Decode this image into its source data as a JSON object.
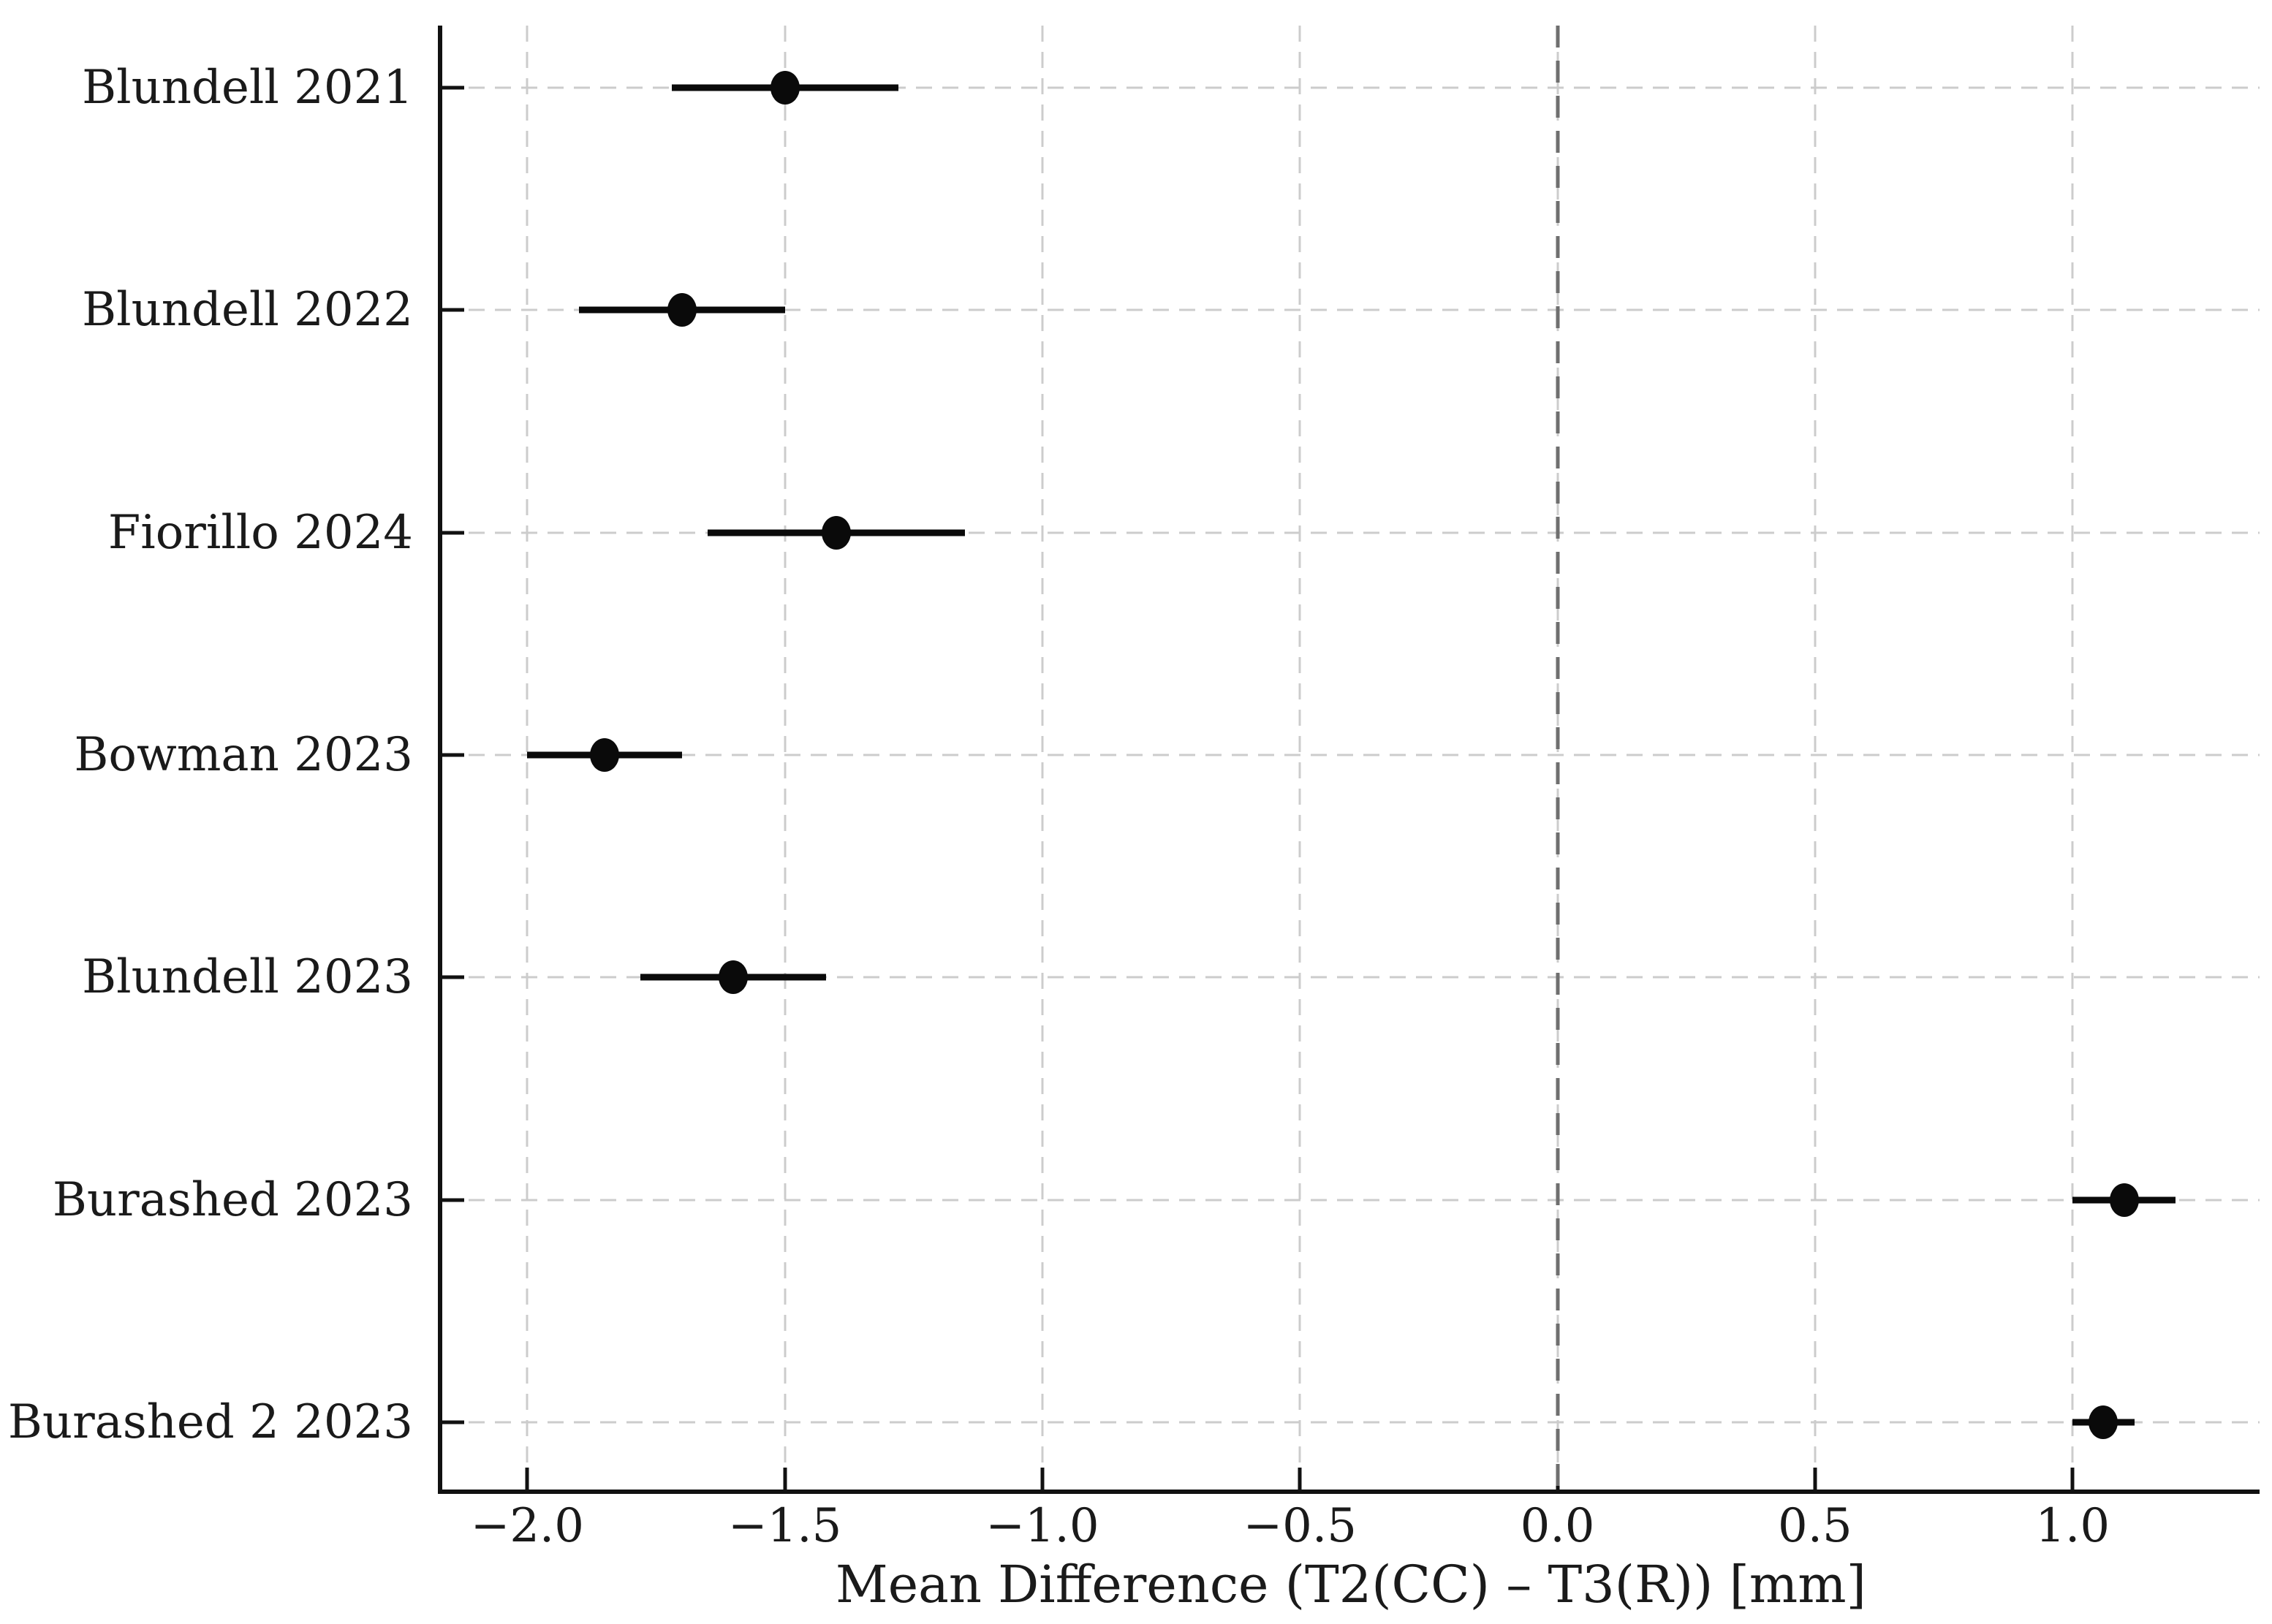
{
  "chart_data": {
    "type": "scatter",
    "subtype": "forest-plot",
    "title": "",
    "xlabel": "Mean Difference (T2(CC) – T3(R)) [mm]",
    "ylabel": "",
    "categories": [
      "Blundell 2021",
      "Blundell 2022",
      "Fiorillo 2024",
      "Bowman 2023",
      "Blundell 2023",
      "Burashed 2023",
      "Burashed 2 2023"
    ],
    "points": [
      {
        "label": "Blundell 2021",
        "mean": -1.5,
        "ci_low": -1.72,
        "ci_high": -1.28
      },
      {
        "label": "Blundell 2022",
        "mean": -1.7,
        "ci_low": -1.9,
        "ci_high": -1.5
      },
      {
        "label": "Fiorillo 2024",
        "mean": -1.4,
        "ci_low": -1.65,
        "ci_high": -1.15
      },
      {
        "label": "Bowman 2023",
        "mean": -1.85,
        "ci_low": -2.0,
        "ci_high": -1.7
      },
      {
        "label": "Blundell 2023",
        "mean": -1.6,
        "ci_low": -1.78,
        "ci_high": -1.42
      },
      {
        "label": "Burashed 2023",
        "mean": 1.1,
        "ci_low": 1.0,
        "ci_high": 1.2
      },
      {
        "label": "Burashed 2 2023",
        "mean": 1.06,
        "ci_low": 1.0,
        "ci_high": 1.12
      }
    ],
    "x_ticks": [
      {
        "value": -2.0,
        "label": "−2.0"
      },
      {
        "value": -1.5,
        "label": "−1.5"
      },
      {
        "value": -1.0,
        "label": "−1.0"
      },
      {
        "value": -0.5,
        "label": "−0.5"
      },
      {
        "value": 0.0,
        "label": "0.0"
      },
      {
        "value": 0.5,
        "label": "0.5"
      },
      {
        "value": 1.0,
        "label": "1.0"
      }
    ],
    "xlim": [
      -2.165,
      1.363
    ],
    "zero_line_value": 0.0,
    "grid": true,
    "legend": false,
    "y_first_frac": 0.0424,
    "y_last_frac": 0.954,
    "colors": {
      "grid": "#cccccc",
      "zero_line": "#6f6f6f",
      "marker": "#0a0a0a",
      "error_bar": "#0a0a0a",
      "spine": "#111111",
      "text": "#1a1a1a"
    }
  }
}
